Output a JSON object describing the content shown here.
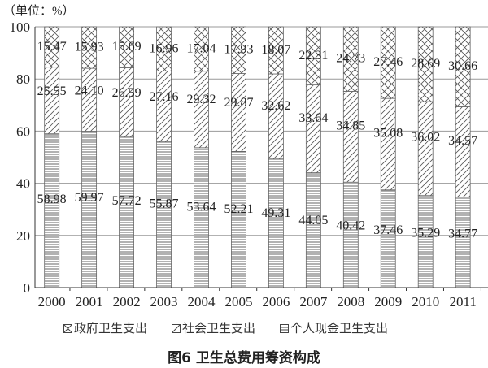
{
  "chart_data": {
    "type": "bar",
    "stacked": true,
    "unit_label": "（单位：%）",
    "title": "图6  卫生总费用筹资构成",
    "categories": [
      "2000",
      "2001",
      "2002",
      "2003",
      "2004",
      "2005",
      "2006",
      "2007",
      "2008",
      "2009",
      "2010",
      "2011"
    ],
    "series": [
      {
        "name": "个人现金卫生支出",
        "pattern": "horizontal-lines",
        "values": [
          58.98,
          59.97,
          57.72,
          55.87,
          53.64,
          52.21,
          49.31,
          44.05,
          40.42,
          37.46,
          35.29,
          34.77
        ]
      },
      {
        "name": "社会卫生支出",
        "pattern": "diagonal-lines",
        "values": [
          25.55,
          24.1,
          26.59,
          27.16,
          29.32,
          29.87,
          32.62,
          33.64,
          34.85,
          35.08,
          36.02,
          34.57
        ]
      },
      {
        "name": "政府卫生支出",
        "pattern": "cross-hatch",
        "values": [
          15.47,
          15.93,
          15.69,
          16.96,
          17.04,
          17.93,
          18.07,
          22.31,
          24.73,
          27.46,
          28.69,
          30.66
        ]
      }
    ],
    "legend_order": [
      "政府卫生支出",
      "社会卫生支出",
      "个人现金卫生支出"
    ],
    "ylim": [
      0,
      100
    ],
    "yticks": [
      "0",
      "20",
      "40",
      "60",
      "80",
      "100"
    ],
    "grid": true,
    "legend_placement": "bottom"
  }
}
